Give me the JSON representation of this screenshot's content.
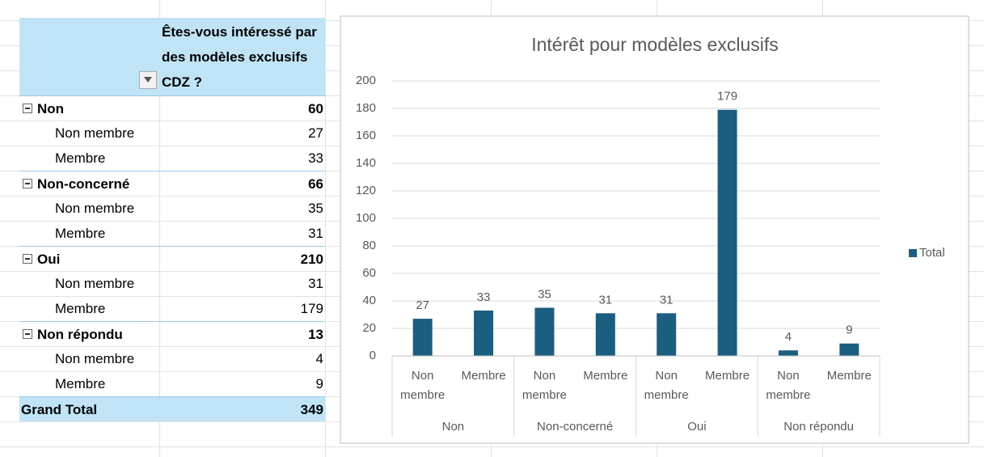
{
  "table": {
    "header": "Êtes-vous intéressé par des modèles exclusifs CDZ ?",
    "groups": [
      {
        "label": "Non",
        "total": 60,
        "rows": [
          {
            "label": "Non membre",
            "value": 27
          },
          {
            "label": "Membre",
            "value": 33
          }
        ]
      },
      {
        "label": "Non-concerné",
        "total": 66,
        "rows": [
          {
            "label": "Non membre",
            "value": 35
          },
          {
            "label": "Membre",
            "value": 31
          }
        ]
      },
      {
        "label": "Oui",
        "total": 210,
        "rows": [
          {
            "label": "Non membre",
            "value": 31
          },
          {
            "label": "Membre",
            "value": 179
          }
        ]
      },
      {
        "label": "Non répondu",
        "total": 13,
        "rows": [
          {
            "label": "Non membre",
            "value": 4
          },
          {
            "label": "Membre",
            "value": 9
          }
        ]
      }
    ],
    "grand_total_label": "Grand Total",
    "grand_total": 349
  },
  "chart_data": {
    "type": "bar",
    "title": "Intérêt pour modèles exclusifs",
    "groups": [
      "Non",
      "Non-concerné",
      "Oui",
      "Non répondu"
    ],
    "categories": [
      "Non membre",
      "Membre",
      "Non membre",
      "Membre",
      "Non membre",
      "Membre",
      "Non membre",
      "Membre"
    ],
    "series": [
      {
        "name": "Total",
        "color": "#1b5e80",
        "values": [
          27,
          33,
          35,
          31,
          31,
          179,
          4,
          9
        ]
      }
    ],
    "ylim": [
      0,
      200
    ],
    "yticks": [
      0,
      20,
      40,
      60,
      80,
      100,
      120,
      140,
      160,
      180,
      200
    ],
    "grid": true,
    "legend": "right"
  }
}
